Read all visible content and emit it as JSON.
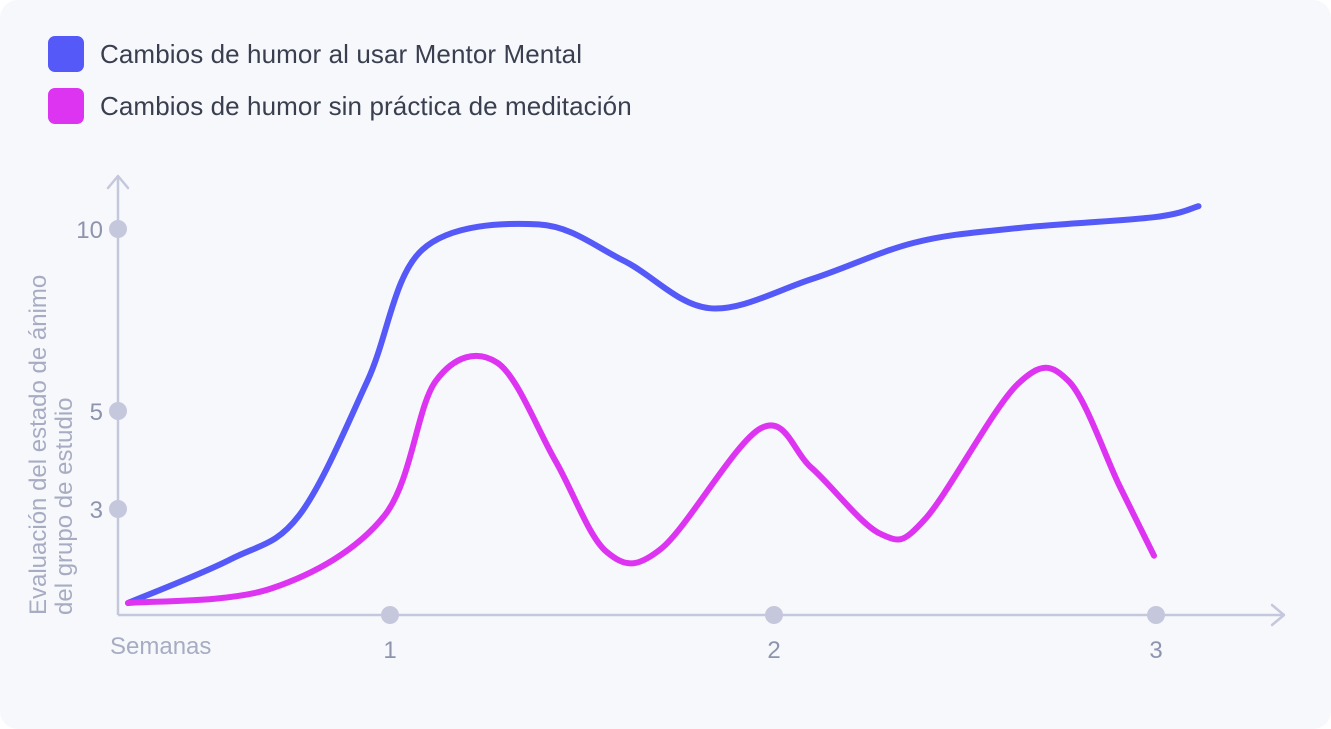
{
  "chart_data": {
    "type": "line",
    "legend_placement": "top-left",
    "xlabel": "Semanas",
    "ylabel_lines": [
      "Evaluación del estado de ánimo",
      "del grupo de estudio"
    ],
    "x_ticks": [
      "1",
      "2",
      "3"
    ],
    "y_ticks": [
      "10",
      "5",
      "3"
    ],
    "grid": false,
    "series": [
      {
        "name": "Cambios de humor al usar Mentor Mental",
        "color": "#5459f8",
        "points": [
          [
            0.0,
            0.0
          ],
          [
            0.3,
            1.2
          ],
          [
            0.5,
            2.4
          ],
          [
            0.7,
            6.1
          ],
          [
            0.86,
            9.7
          ],
          [
            1.2,
            10.4
          ],
          [
            1.45,
            9.4
          ],
          [
            1.7,
            8.1
          ],
          [
            2.0,
            8.9
          ],
          [
            2.3,
            9.9
          ],
          [
            2.6,
            10.3
          ],
          [
            3.0,
            10.6
          ],
          [
            3.13,
            10.9
          ]
        ]
      },
      {
        "name": "Cambios de humor sin práctica de meditación",
        "color": "#dd34f2",
        "points": [
          [
            0.0,
            0.0
          ],
          [
            0.42,
            0.4
          ],
          [
            0.75,
            2.4
          ],
          [
            0.9,
            6.1
          ],
          [
            1.08,
            6.6
          ],
          [
            1.25,
            3.9
          ],
          [
            1.4,
            1.4
          ],
          [
            1.56,
            1.5
          ],
          [
            1.85,
            4.8
          ],
          [
            2.0,
            3.7
          ],
          [
            2.2,
            1.9
          ],
          [
            2.33,
            2.3
          ],
          [
            2.6,
            6.0
          ],
          [
            2.75,
            6.1
          ],
          [
            2.9,
            3.2
          ],
          [
            3.0,
            1.3
          ]
        ]
      }
    ]
  }
}
